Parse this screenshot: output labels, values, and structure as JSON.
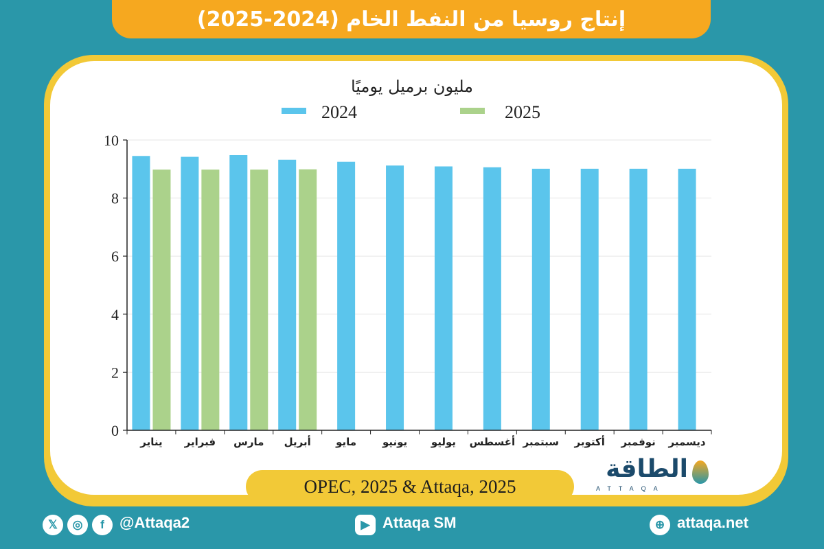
{
  "header": {
    "title": "إنتاج روسيا من النفط الخام (2024-2025)"
  },
  "chart_data": {
    "type": "bar",
    "title": "مليون برميل يوميًا",
    "ylabel": "مليون برميل يوميًا",
    "xlabel": "",
    "ylim": [
      0,
      10
    ],
    "yticks": [
      "0",
      "2",
      "4",
      "6",
      "8",
      "10"
    ],
    "categories": [
      "يناير",
      "فبراير",
      "مارس",
      "أبريل",
      "مايو",
      "يونيو",
      "يوليو",
      "أغسطس",
      "سبتمبر",
      "أكتوبر",
      "نوفمبر",
      "ديسمبر"
    ],
    "legend_position": "top",
    "series": [
      {
        "name": "2024",
        "color": "#5bc5ec",
        "values": [
          9.45,
          9.42,
          9.48,
          9.32,
          9.25,
          9.12,
          9.09,
          9.06,
          9.01,
          9.01,
          9.01,
          9.01
        ]
      },
      {
        "name": "2025",
        "color": "#abd28b",
        "values": [
          8.98,
          8.98,
          8.98,
          8.99,
          null,
          null,
          null,
          null,
          null,
          null,
          null,
          null
        ]
      }
    ]
  },
  "source": {
    "text": "OPEC, 2025 & Attaqa, 2025"
  },
  "logo": {
    "arabic": "الطاقة",
    "latin": "ATTAQA"
  },
  "footer": {
    "social_handle": "@Attaqa2",
    "youtube": "Attaqa SM",
    "website": "attaqa.net"
  },
  "colors": {
    "background": "#2a97a9",
    "banner": "#f6a81f",
    "frame": "#f2c937",
    "bar2024": "#5bc5ec",
    "bar2025": "#abd28b"
  }
}
